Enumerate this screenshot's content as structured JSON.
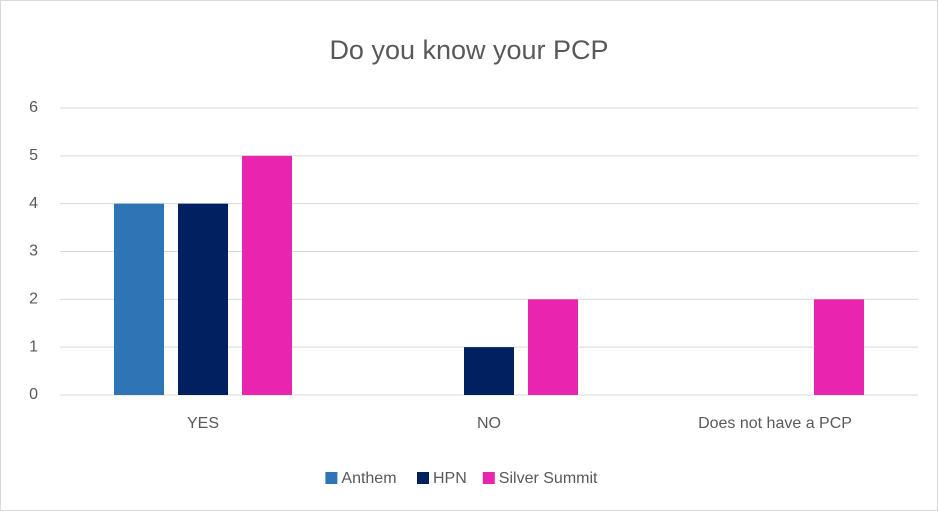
{
  "chart_data": {
    "type": "bar",
    "title": "Do you know your PCP",
    "categories": [
      "YES",
      "NO",
      "Does not have a PCP"
    ],
    "series": [
      {
        "name": "Anthem",
        "color": "#2e75b6",
        "values": [
          4,
          0,
          0
        ]
      },
      {
        "name": "HPN",
        "color": "#002060",
        "values": [
          4,
          1,
          0
        ]
      },
      {
        "name": "Silver Summit",
        "color": "#e925b0",
        "values": [
          5,
          2,
          2
        ]
      }
    ],
    "ylim": [
      0,
      6
    ],
    "yticks": [
      0,
      1,
      2,
      3,
      4,
      5,
      6
    ],
    "grid": true,
    "legend": "bottom"
  }
}
